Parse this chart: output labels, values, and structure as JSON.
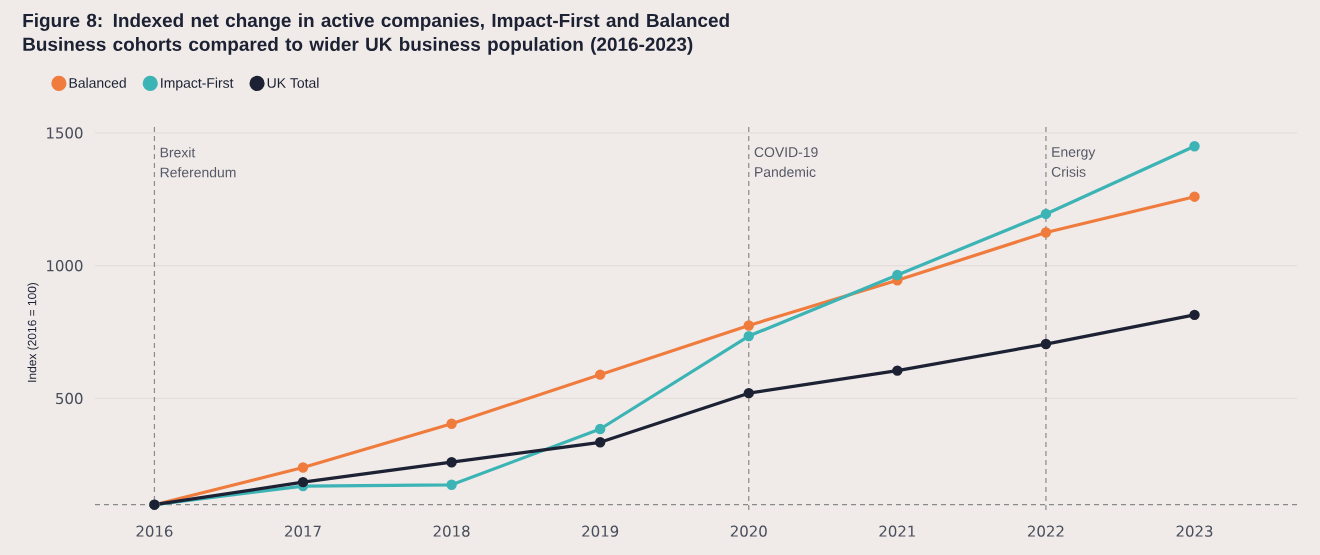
{
  "chart_data": {
    "type": "line",
    "title": "Figure 8: Indexed net change in active companies, Impact-First and Balanced Business cohorts compared to wider UK business population (2016-2023)",
    "ylabel": "Index (2016 = 100)",
    "x": [
      2016,
      2017,
      2018,
      2019,
      2020,
      2021,
      2022,
      2023
    ],
    "series": [
      {
        "name": "Balanced",
        "color": "#ef7b3d",
        "values": [
          100,
          240,
          405,
          590,
          775,
          945,
          1125,
          1260
        ]
      },
      {
        "name": "Impact-First",
        "color": "#3cb4b5",
        "values": [
          100,
          170,
          175,
          385,
          735,
          965,
          1195,
          1450
        ]
      },
      {
        "name": "UK Total",
        "color": "#1c2133",
        "values": [
          100,
          185,
          260,
          335,
          520,
          605,
          705,
          815
        ]
      }
    ],
    "xlim": [
      2015.6,
      2023.69
    ],
    "ylim": [
      80,
      1530
    ],
    "xticks": [
      2016,
      2017,
      2018,
      2019,
      2020,
      2021,
      2022,
      2023
    ],
    "yticks": [
      500,
      1000,
      1500
    ],
    "grid": "y",
    "legend": "top left",
    "marker": "circle",
    "line_style": "solid",
    "ref_lines": [
      {
        "axis": "x",
        "value": 2016,
        "label": "Brexit Referendum",
        "color": "#8a8a8a",
        "line_style": "dashed"
      },
      {
        "axis": "x",
        "value": 2020,
        "label": "COVID-19 Pandemic",
        "color": "#8a8a8a",
        "line_style": "dashed"
      },
      {
        "axis": "x",
        "value": 2022,
        "label": "Energy Crisis",
        "color": "#8a8a8a",
        "line_style": "dashed"
      },
      {
        "axis": "y",
        "value": 100,
        "color": "#8a8a8a",
        "line_style": "dashed"
      }
    ]
  }
}
